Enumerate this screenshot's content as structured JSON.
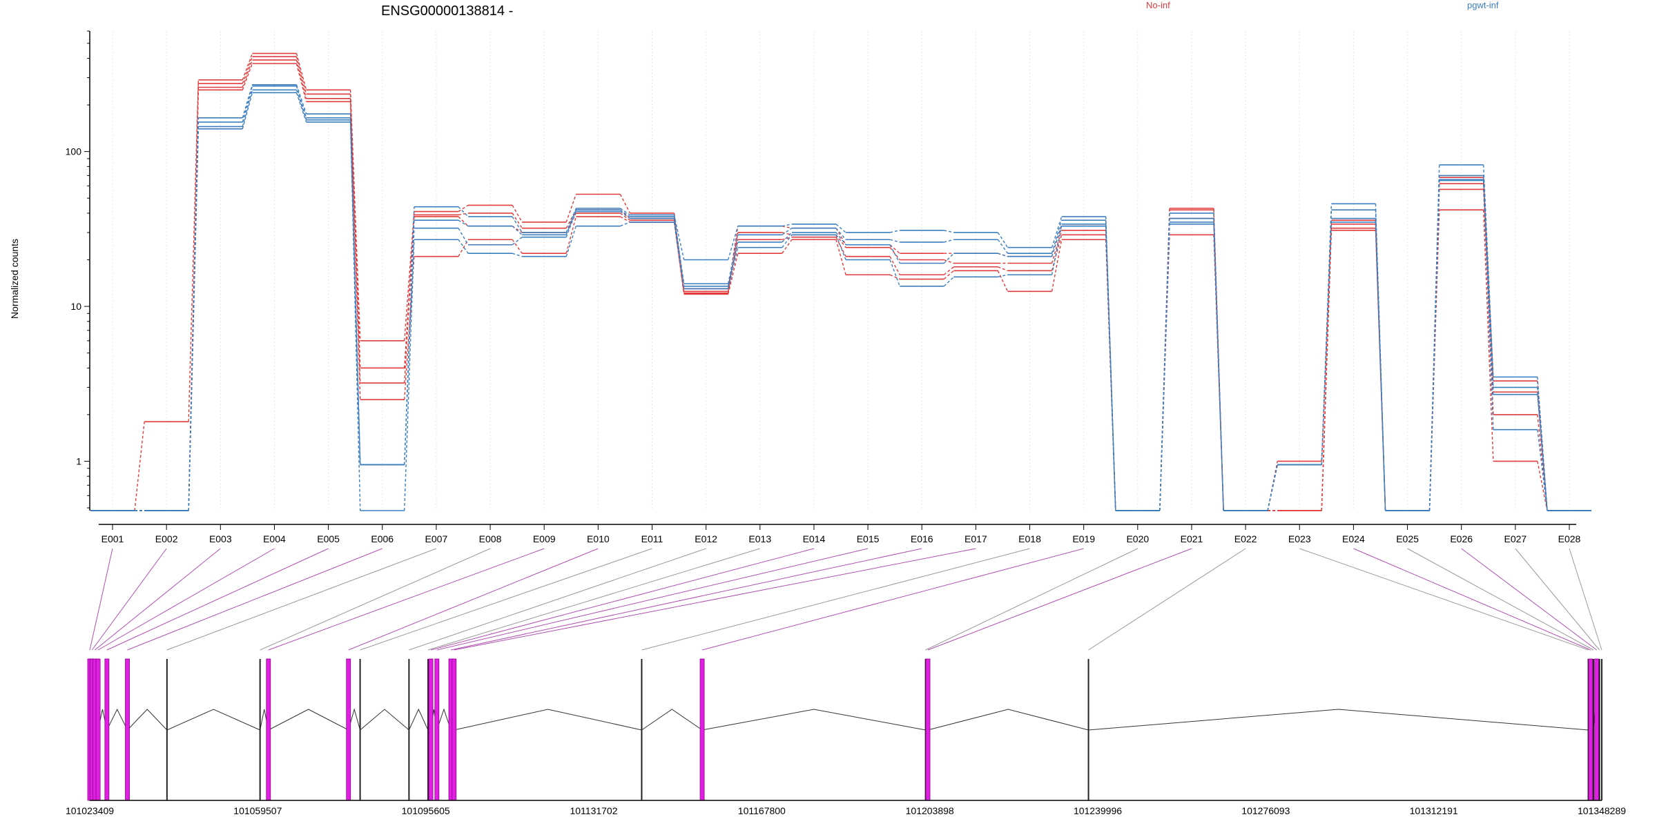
{
  "chart_data": {
    "type": "line",
    "title": "ENSG00000138814 -",
    "ylabel": "Normalized counts",
    "y_scale": "log",
    "ylim": [
      0.48,
      600
    ],
    "y_ticks": [
      1,
      10,
      100
    ],
    "y_tick_labels": [
      "1",
      "10",
      "100"
    ],
    "grid": "vertical only, light dotted",
    "legend_placement": "top, text labels in series color",
    "categories": [
      "E001",
      "E002",
      "E003",
      "E004",
      "E005",
      "E006",
      "E007",
      "E008",
      "E009",
      "E010",
      "E011",
      "E012",
      "E013",
      "E014",
      "E015",
      "E016",
      "E017",
      "E018",
      "E019",
      "E020",
      "E021",
      "E022",
      "E023",
      "E024",
      "E025",
      "E026",
      "E027",
      "E028"
    ],
    "series": [
      {
        "name": "No-inf",
        "color": "#e03a3a",
        "values": [
          0.48,
          1.8,
          290,
          430,
          250,
          6,
          41,
          45,
          35,
          53,
          40,
          13,
          33,
          32,
          25,
          22,
          22,
          21,
          33,
          0.48,
          43,
          0.48,
          1.0,
          36,
          0.48,
          68,
          3.3,
          0.48
        ]
      },
      {
        "name": "No-inf",
        "color": "#e03a3a",
        "values": [
          0.48,
          0.48,
          275,
          410,
          235,
          4,
          39,
          40,
          32,
          42,
          37,
          12.5,
          30,
          29,
          24,
          20,
          19,
          19,
          31,
          0.48,
          42,
          0.48,
          0.48,
          34,
          0.48,
          62,
          2.8,
          0.48
        ]
      },
      {
        "name": "No-inf",
        "color": "#e03a3a",
        "values": [
          0.48,
          0.48,
          260,
          390,
          220,
          3.2,
          38,
          33,
          30,
          40,
          36,
          12.2,
          27,
          28,
          21,
          16,
          18,
          17,
          29,
          0.48,
          37,
          0.48,
          0.48,
          32,
          0.48,
          57,
          2.0,
          0.48
        ]
      },
      {
        "name": "No-inf",
        "color": "#e03a3a",
        "values": [
          0.48,
          0.48,
          250,
          370,
          210,
          2.5,
          21,
          27,
          22,
          38,
          35,
          12,
          22,
          27,
          16,
          15,
          17,
          12.5,
          27,
          0.48,
          29,
          0.48,
          0.48,
          31,
          0.48,
          42,
          1.0,
          0.48
        ]
      },
      {
        "name": "pgwt-inf",
        "color": "#3a7ebf",
        "values": [
          0.48,
          0.48,
          165,
          270,
          175,
          0.95,
          44,
          38,
          30,
          43,
          39,
          20,
          33,
          34,
          30,
          31,
          30,
          24,
          38,
          0.48,
          40,
          0.48,
          0.95,
          46,
          0.48,
          82,
          3.5,
          0.48
        ]
      },
      {
        "name": "pgwt-inf",
        "color": "#3a7ebf",
        "values": [
          0.48,
          0.48,
          155,
          265,
          165,
          0.95,
          36,
          33,
          29,
          42,
          38,
          14,
          29,
          32,
          27,
          26,
          27,
          22,
          36,
          0.48,
          37,
          0.48,
          0.95,
          42,
          0.48,
          70,
          3.0,
          0.48
        ]
      },
      {
        "name": "pgwt-inf",
        "color": "#3a7ebf",
        "values": [
          0.48,
          0.48,
          145,
          250,
          160,
          0.95,
          32,
          25,
          28,
          41,
          37,
          13.5,
          26,
          30,
          25,
          19,
          22,
          21,
          34,
          0.48,
          35,
          0.48,
          0.95,
          37,
          0.48,
          66,
          2.7,
          0.48
        ]
      },
      {
        "name": "pgwt-inf",
        "color": "#3a7ebf",
        "values": [
          0.48,
          0.48,
          140,
          240,
          155,
          0.48,
          27,
          22,
          21,
          33,
          35,
          13,
          24,
          29,
          20,
          13.5,
          15.5,
          16,
          33,
          0.48,
          34,
          0.48,
          0.95,
          35,
          0.48,
          65,
          1.6,
          0.48
        ]
      }
    ],
    "legend": [
      {
        "label": "No-inf",
        "color": "#e03a3a"
      },
      {
        "label": "pgwt-inf",
        "color": "#3a7ebf"
      }
    ],
    "gene_model": {
      "genomic_axis_ticks": [
        "101023409",
        "101059507",
        "101095605",
        "101131702",
        "101167800",
        "101203898",
        "101239996",
        "101276093",
        "101312191",
        "101348289"
      ],
      "genomic_range": [
        101023409,
        101348289
      ],
      "exon_starts": [
        101023409,
        101023900,
        101024500,
        101025200,
        101027100,
        101031500,
        101040000,
        101060000,
        101061800,
        101079000,
        101081500,
        101092000,
        101096100,
        101096700,
        101098000,
        101101000,
        101101700,
        101142000,
        101155000,
        101203000,
        101203500,
        101238000,
        101345400,
        101345900,
        101346500,
        101347200,
        101347800,
        101348289
      ],
      "highlighted_exons": [
        "E001",
        "E002",
        "E003",
        "E004",
        "E005",
        "E006",
        "E009",
        "E010",
        "E014",
        "E015",
        "E016",
        "E017",
        "E019",
        "E021",
        "E024",
        "E026"
      ],
      "highlight_color": "#e020e0",
      "normal_color": "#555555"
    }
  }
}
